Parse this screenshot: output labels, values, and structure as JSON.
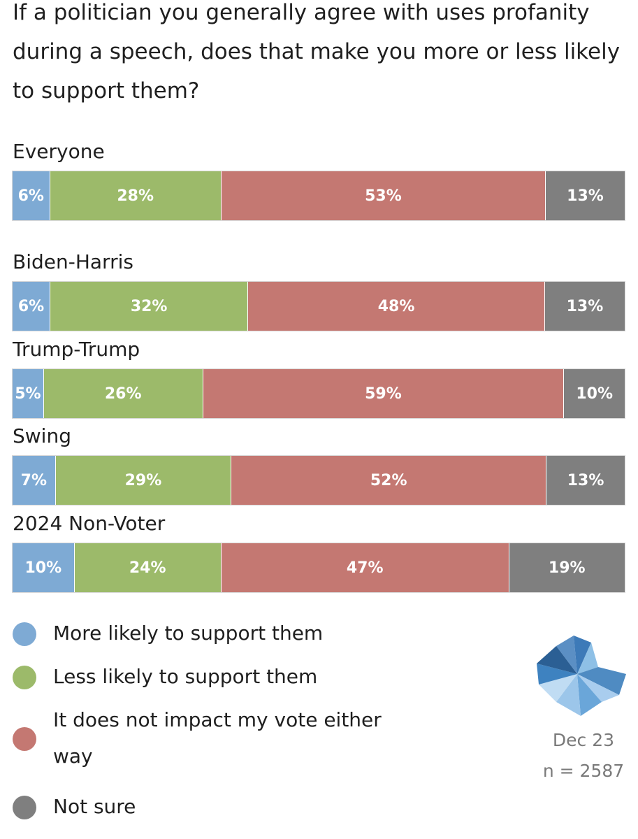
{
  "title": "If a politician you generally agree with uses profanity during a speech, does that make you more or less likely to support them?",
  "colors": {
    "more_likely": "#7eaad4",
    "less_likely": "#9cba6a",
    "no_impact": "#c47872",
    "not_sure": "#7f7f7f"
  },
  "chart_data": {
    "type": "bar",
    "orientation": "horizontal",
    "stacked": true,
    "percent": true,
    "title": "If a politician you generally agree with uses profanity during a speech, does that make you more or less likely to support them?",
    "categories": [
      "Everyone",
      "Biden-Harris",
      "Trump-Trump",
      "Swing",
      "2024 Non-Voter"
    ],
    "series": [
      {
        "name": "More likely to support them",
        "color": "#7eaad4",
        "values": [
          6,
          6,
          5,
          7,
          10
        ],
        "labels": [
          "6%",
          "6%",
          "5%",
          "7%",
          "10%"
        ]
      },
      {
        "name": "Less likely to support them",
        "color": "#9cba6a",
        "values": [
          28,
          32,
          26,
          29,
          24
        ],
        "labels": [
          "28%",
          "32%",
          "26%",
          "29%",
          "24%"
        ]
      },
      {
        "name": "It does not impact my vote either way",
        "color": "#c47872",
        "values": [
          53,
          48,
          59,
          52,
          47
        ],
        "labels": [
          "53%",
          "48%",
          "59%",
          "52%",
          "47%"
        ]
      },
      {
        "name": "Not sure",
        "color": "#7f7f7f",
        "values": [
          13,
          13,
          10,
          13,
          19
        ],
        "labels": [
          "13%",
          "13%",
          "10%",
          "13%",
          "19%"
        ]
      }
    ],
    "legend": "bottom-left",
    "grid": false
  },
  "legend": [
    {
      "label": "More likely to support them",
      "color": "#7eaad4"
    },
    {
      "label": "Less likely to support them",
      "color": "#9cba6a"
    },
    {
      "label": "It does not impact my vote either way",
      "color": "#c47872"
    },
    {
      "label": "Not sure",
      "color": "#7f7f7f"
    }
  ],
  "footer": {
    "logo_icon": "pinwheel-logo-icon",
    "date": "Dec 23",
    "sample": "n = 2587"
  }
}
